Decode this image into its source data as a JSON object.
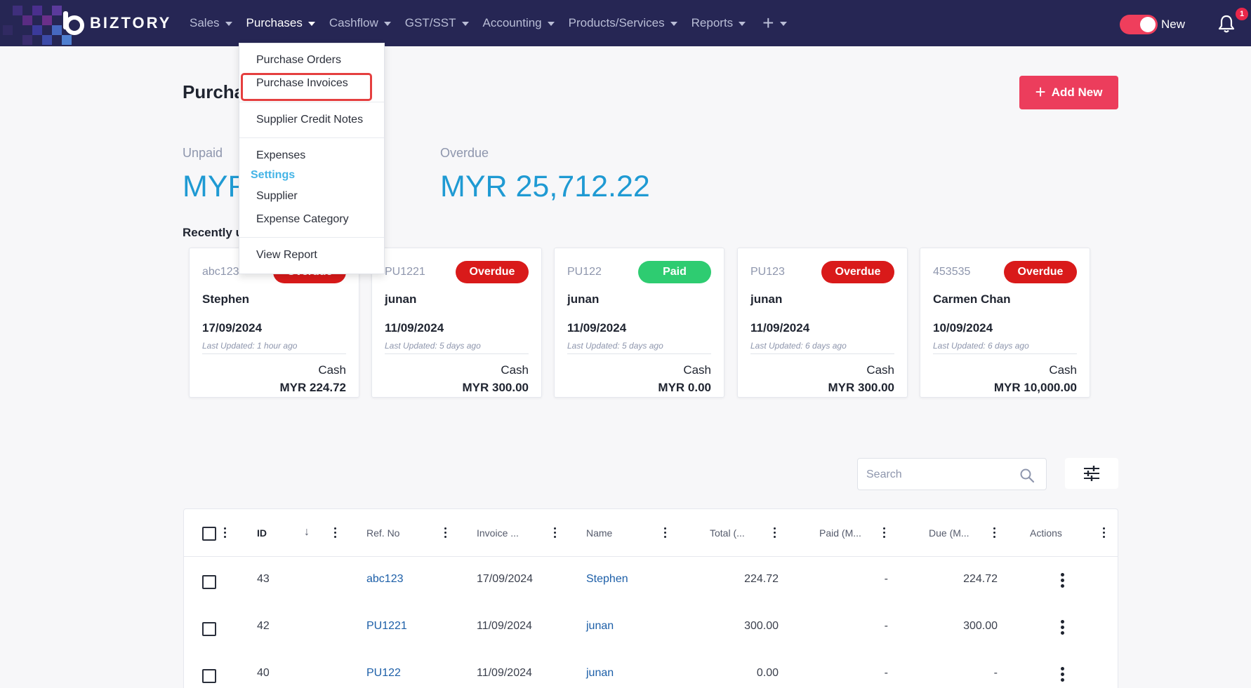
{
  "brand": {
    "name": "BIZTORY"
  },
  "nav": {
    "items": [
      {
        "label": "Sales",
        "active": false
      },
      {
        "label": "Purchases",
        "active": true
      },
      {
        "label": "Cashflow",
        "active": false
      },
      {
        "label": "GST/SST",
        "active": false
      },
      {
        "label": "Accounting",
        "active": false
      },
      {
        "label": "Products/Services",
        "active": false
      },
      {
        "label": "Reports",
        "active": false
      }
    ],
    "plus_label": "+",
    "toggle_label": "New",
    "notification_count": "1"
  },
  "dropdown": {
    "purchase_orders": "Purchase Orders",
    "purchase_invoices": "Purchase Invoices",
    "supplier_credit_notes": "Supplier Credit Notes",
    "expenses": "Expenses",
    "settings_heading": "Settings",
    "supplier": "Supplier",
    "expense_category": "Expense Category",
    "view_report": "View Report"
  },
  "page": {
    "title": "Purcha",
    "add_button": "Add New",
    "unpaid_label": "Unpaid",
    "unpaid_value": "MYR",
    "overdue_label": "Overdue",
    "overdue_value": "MYR 25,712.22",
    "recent_label": "Recently u"
  },
  "cards": [
    {
      "ref": "abc123",
      "status": "Overdue",
      "name": "Stephen",
      "date": "17/09/2024",
      "updated": "Last Updated: 1 hour ago",
      "method": "Cash",
      "amount": "MYR 224.72"
    },
    {
      "ref": "PU1221",
      "status": "Overdue",
      "name": "junan",
      "date": "11/09/2024",
      "updated": "Last Updated: 5 days ago",
      "method": "Cash",
      "amount": "MYR 300.00"
    },
    {
      "ref": "PU122",
      "status": "Paid",
      "name": "junan",
      "date": "11/09/2024",
      "updated": "Last Updated: 5 days ago",
      "method": "Cash",
      "amount": "MYR 0.00"
    },
    {
      "ref": "PU123",
      "status": "Overdue",
      "name": "junan",
      "date": "11/09/2024",
      "updated": "Last Updated: 6 days ago",
      "method": "Cash",
      "amount": "MYR 300.00"
    },
    {
      "ref": "453535",
      "status": "Overdue",
      "name": "Carmen Chan",
      "date": "10/09/2024",
      "updated": "Last Updated: 6 days ago",
      "method": "Cash",
      "amount": "MYR 10,000.00"
    }
  ],
  "search": {
    "placeholder": "Search"
  },
  "table": {
    "headers": {
      "id": "ID",
      "ref": "Ref. No",
      "invoice": "Invoice ...",
      "name": "Name",
      "total": "Total (...",
      "paid": "Paid (M...",
      "due": "Due (M...",
      "actions": "Actions"
    },
    "rows": [
      {
        "id": "43",
        "ref": "abc123",
        "date": "17/09/2024",
        "name": "Stephen",
        "total": "224.72",
        "paid": "-",
        "due": "224.72"
      },
      {
        "id": "42",
        "ref": "PU1221",
        "date": "11/09/2024",
        "name": "junan",
        "total": "300.00",
        "paid": "-",
        "due": "300.00"
      },
      {
        "id": "40",
        "ref": "PU122",
        "date": "11/09/2024",
        "name": "junan",
        "total": "0.00",
        "paid": "-",
        "due": "-"
      }
    ]
  },
  "colors": {
    "nav_bg": "#262654",
    "accent": "#ec3d5c",
    "overdue": "#d91a1a",
    "paid": "#2ecc71",
    "stat_blue": "#1f9ad3",
    "link": "#1d5fa8",
    "highlight": "#e53f3f"
  }
}
